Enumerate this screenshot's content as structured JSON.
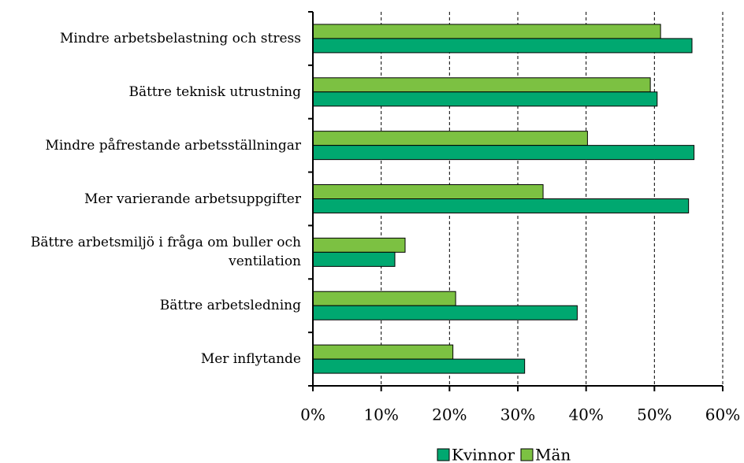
{
  "chart_data": {
    "type": "hbar",
    "categories": [
      "Mindre arbetsbelastning och stress",
      "Bättre teknisk utrustning",
      "Mindre påfrestande arbetsställningar",
      "Mer varierande arbetsuppgifter",
      "Bättre arbetsmiljö i fråga om buller och ventilation",
      "Bättre arbetsledning",
      "Mer inflytande"
    ],
    "series": [
      {
        "name": "Kvinnor",
        "color": "#00a870",
        "values": [
          55.5,
          50.4,
          55.8,
          55.0,
          12.0,
          38.7,
          31.0
        ]
      },
      {
        "name": "Män",
        "color": "#7cc142",
        "values": [
          50.9,
          49.4,
          40.2,
          33.7,
          13.5,
          20.9,
          20.5
        ]
      }
    ],
    "xlim": [
      0,
      60
    ],
    "xticks": [
      {
        "value": 0,
        "label": "0%"
      },
      {
        "value": 10,
        "label": "10%"
      },
      {
        "value": 20,
        "label": "20%"
      },
      {
        "value": 30,
        "label": "30%"
      },
      {
        "value": 40,
        "label": "40%"
      },
      {
        "value": 50,
        "label": "50%"
      },
      {
        "value": 60,
        "label": "60%"
      }
    ],
    "grid": true,
    "legend": "bottom"
  }
}
